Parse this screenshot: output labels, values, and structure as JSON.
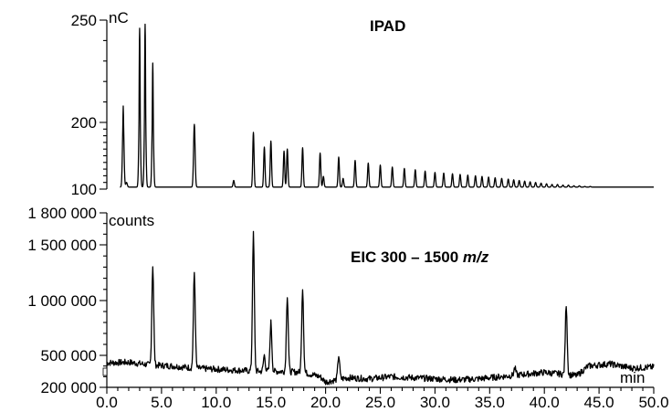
{
  "chart_data": [
    {
      "type": "line",
      "title": "IPAD",
      "ylabel": "nC",
      "xlabel": "",
      "xlim": [
        0,
        50
      ],
      "ylim": [
        100,
        250
      ],
      "yticks_major": [
        "250",
        "200",
        "100"
      ],
      "yticks_major_values": [
        250,
        200,
        100
      ],
      "baseline": 103,
      "grid": false,
      "legend": "none",
      "series": [
        {
          "peaks": [
            {
              "x": 1.5,
              "y": 208
            },
            {
              "x": 1.8,
              "y": 110
            },
            {
              "x": 3.0,
              "y": 246
            },
            {
              "x": 3.5,
              "y": 248
            },
            {
              "x": 4.2,
              "y": 229
            },
            {
              "x": 8.0,
              "y": 197
            },
            {
              "x": 11.6,
              "y": 113
            },
            {
              "x": 13.4,
              "y": 185
            },
            {
              "x": 14.4,
              "y": 163
            },
            {
              "x": 15.0,
              "y": 172
            },
            {
              "x": 16.2,
              "y": 157
            },
            {
              "x": 16.5,
              "y": 160
            },
            {
              "x": 17.9,
              "y": 162
            },
            {
              "x": 19.5,
              "y": 154
            },
            {
              "x": 19.8,
              "y": 119
            },
            {
              "x": 21.2,
              "y": 148
            },
            {
              "x": 21.6,
              "y": 116
            },
            {
              "x": 22.7,
              "y": 143
            },
            {
              "x": 23.9,
              "y": 139
            },
            {
              "x": 25.0,
              "y": 136
            },
            {
              "x": 26.1,
              "y": 133
            },
            {
              "x": 27.2,
              "y": 131
            },
            {
              "x": 28.2,
              "y": 129
            },
            {
              "x": 29.1,
              "y": 127
            },
            {
              "x": 30.0,
              "y": 125
            },
            {
              "x": 30.8,
              "y": 124
            },
            {
              "x": 31.6,
              "y": 123
            },
            {
              "x": 32.3,
              "y": 122
            },
            {
              "x": 33.0,
              "y": 121
            },
            {
              "x": 33.7,
              "y": 120
            },
            {
              "x": 34.3,
              "y": 119
            },
            {
              "x": 34.9,
              "y": 118
            },
            {
              "x": 35.5,
              "y": 117
            },
            {
              "x": 36.1,
              "y": 116
            },
            {
              "x": 36.7,
              "y": 115
            },
            {
              "x": 37.2,
              "y": 114
            },
            {
              "x": 37.7,
              "y": 113
            },
            {
              "x": 38.2,
              "y": 112
            },
            {
              "x": 38.7,
              "y": 111
            },
            {
              "x": 39.2,
              "y": 110
            },
            {
              "x": 39.7,
              "y": 109
            },
            {
              "x": 40.2,
              "y": 108
            },
            {
              "x": 40.7,
              "y": 107
            },
            {
              "x": 41.2,
              "y": 107
            },
            {
              "x": 41.7,
              "y": 106
            },
            {
              "x": 42.2,
              "y": 106
            },
            {
              "x": 42.7,
              "y": 105
            },
            {
              "x": 43.2,
              "y": 105
            },
            {
              "x": 43.7,
              "y": 104
            },
            {
              "x": 44.2,
              "y": 104
            }
          ]
        }
      ]
    },
    {
      "type": "line",
      "title_prefix": "EIC 300 – 1500 ",
      "title_italic": "m/z",
      "ylabel": "counts",
      "xlabel": "min",
      "xlim": [
        0,
        50
      ],
      "ylim": [
        200000,
        1800000
      ],
      "xticks": [
        0,
        5,
        10,
        15,
        20,
        25,
        30,
        35,
        40,
        45,
        50
      ],
      "xtick_labels": [
        "0.0",
        "5.0",
        "10.0",
        "15.0",
        "20.0",
        "25.0",
        "30.0",
        "35.0",
        "40.0",
        "45.0",
        "50.0"
      ],
      "yticks_major": [
        "1 800 000",
        "1 500 000",
        "1 000 000",
        "500 000",
        "200 000"
      ],
      "yticks_major_values": [
        1800000,
        1500000,
        1000000,
        500000,
        200000
      ],
      "grid": false,
      "legend": "none",
      "series": [
        {
          "baseline": [
            {
              "x": 0.0,
              "y": 430000
            },
            {
              "x": 2.0,
              "y": 435000
            },
            {
              "x": 4.0,
              "y": 410000
            },
            {
              "x": 6.0,
              "y": 400000
            },
            {
              "x": 8.0,
              "y": 380000
            },
            {
              "x": 10.0,
              "y": 370000
            },
            {
              "x": 12.0,
              "y": 360000
            },
            {
              "x": 14.0,
              "y": 350000
            },
            {
              "x": 16.0,
              "y": 350000
            },
            {
              "x": 18.0,
              "y": 340000
            },
            {
              "x": 19.5,
              "y": 300000
            },
            {
              "x": 20.0,
              "y": 250000
            },
            {
              "x": 22.0,
              "y": 290000
            },
            {
              "x": 24.0,
              "y": 280000
            },
            {
              "x": 26.0,
              "y": 300000
            },
            {
              "x": 28.0,
              "y": 290000
            },
            {
              "x": 30.0,
              "y": 280000
            },
            {
              "x": 32.0,
              "y": 270000
            },
            {
              "x": 34.0,
              "y": 280000
            },
            {
              "x": 36.0,
              "y": 300000
            },
            {
              "x": 38.0,
              "y": 320000
            },
            {
              "x": 40.0,
              "y": 340000
            },
            {
              "x": 43.0,
              "y": 310000
            },
            {
              "x": 44.0,
              "y": 400000
            },
            {
              "x": 46.0,
              "y": 420000
            },
            {
              "x": 48.0,
              "y": 380000
            },
            {
              "x": 50.0,
              "y": 390000
            }
          ],
          "peaks": [
            {
              "x": 4.2,
              "y": 1320000
            },
            {
              "x": 8.0,
              "y": 1250000
            },
            {
              "x": 13.4,
              "y": 1600000
            },
            {
              "x": 14.4,
              "y": 500000
            },
            {
              "x": 15.0,
              "y": 800000
            },
            {
              "x": 16.5,
              "y": 1050000
            },
            {
              "x": 17.9,
              "y": 1120000
            },
            {
              "x": 21.2,
              "y": 500000
            },
            {
              "x": 37.3,
              "y": 380000
            },
            {
              "x": 42.0,
              "y": 970000
            }
          ]
        }
      ]
    }
  ]
}
